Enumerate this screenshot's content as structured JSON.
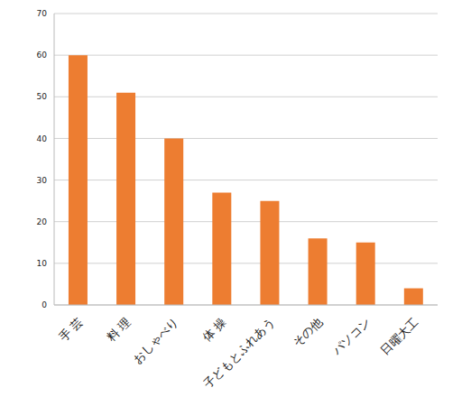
{
  "chart_data": {
    "type": "bar",
    "categories": [
      "手 芸",
      "料 理",
      "おしゃべり",
      "体 操",
      "子どもとふれあう",
      "その他",
      "パソコン",
      "日曜大工"
    ],
    "values": [
      60,
      51,
      40,
      27,
      25,
      16,
      15,
      4
    ],
    "color": "#ed7d31",
    "ylim": [
      0,
      70
    ],
    "yticks": [
      0,
      10,
      20,
      30,
      40,
      50,
      60,
      70
    ],
    "grid": true
  }
}
